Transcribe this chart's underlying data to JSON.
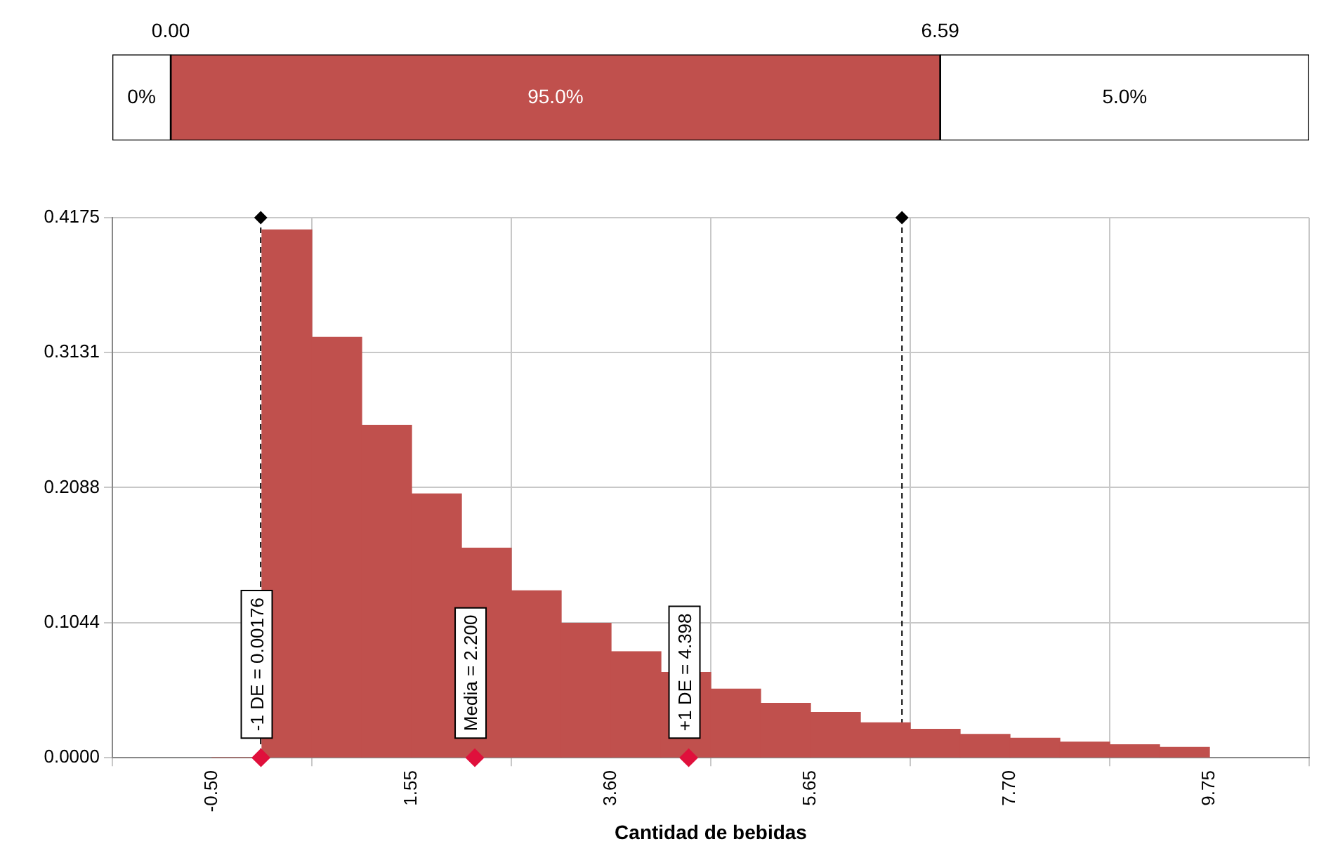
{
  "chart_data": [
    {
      "type": "bar",
      "orientation": "horizontal",
      "categories": [
        null
      ],
      "xlim": [
        -0.5,
        9.75
      ],
      "xticks": [
        {
          "value": 0,
          "label": "0.00"
        },
        {
          "value": 6.59,
          "label": "6.59"
        }
      ],
      "tick_labels": "x",
      "series": [
        {
          "color": "#ffffff",
          "base": [
            -0.5
          ],
          "values": [
            0.5
          ]
        },
        {
          "color": "#c0504d",
          "base": [
            0
          ],
          "values": [
            6.59
          ]
        },
        {
          "color": "#ffffff",
          "base": [
            6.59
          ],
          "values": [
            3.16
          ]
        }
      ],
      "annotations": [
        "0%",
        "95.0%",
        "5.0%"
      ]
    },
    {
      "type": "histogram",
      "xlabel": "Cantidad de bebidas",
      "xlim": [
        -0.5,
        9.75
      ],
      "xticks": [
        {
          "value": -0.5,
          "label": "-0.50"
        },
        1.55,
        {
          "value": 3.6,
          "label": "3.60"
        },
        5.65,
        {
          "value": 7.7,
          "label": "7.70"
        },
        9.75
      ],
      "ylim": [
        0,
        0.4175
      ],
      "yticks": [
        {
          "value": 0,
          "label": "0.0000"
        },
        0.1044,
        0.2088,
        0.3131,
        0.4175
      ],
      "grid": true,
      "legend": false,
      "series": [
        {
          "type": "histogram",
          "color": "#c0504d",
          "bins": [
            -0.5,
            0.0125,
            0.525,
            1.0375,
            1.55,
            2.0625,
            2.575,
            3.0875,
            3.6,
            4.1125,
            4.625,
            5.1375,
            5.65,
            6.1625,
            6.675,
            7.1875,
            7.7,
            8.2125,
            8.725,
            9.2375,
            9.75
          ],
          "values": [
            0,
            0.408,
            0.325,
            0.257,
            0.204,
            0.162,
            0.129,
            0.104,
            0.082,
            0.066,
            0.053,
            0.042,
            0.035,
            0.027,
            0.022,
            0.018,
            0.015,
            0.012,
            0.01,
            0.008
          ]
        },
        {
          "type": "scatter",
          "marker": "diamond",
          "color": "#e0103c",
          "x": [
            0.00176,
            2.2,
            4.398
          ],
          "values": [
            0,
            0,
            0
          ]
        },
        {
          "type": "scatter",
          "marker": "diamond",
          "color": "#000000",
          "x": [
            0,
            6.59
          ],
          "values": [
            0.4175,
            0.4175
          ]
        }
      ],
      "ref_lines": [
        {
          "axis": "x",
          "value": 0,
          "color": "#000000",
          "line_style": "dashed"
        },
        {
          "axis": "x",
          "value": 6.59,
          "color": "#000000",
          "line_style": "dashed"
        }
      ],
      "annotations": [
        {
          "text": "-1 DE = 0.00176",
          "x": 0.00176,
          "y": 0
        },
        {
          "text": "Media = 2.200",
          "x": 2.2,
          "y": 0
        },
        {
          "text": "+1 DE = 4.398",
          "x": 4.398,
          "y": 0
        }
      ]
    }
  ]
}
